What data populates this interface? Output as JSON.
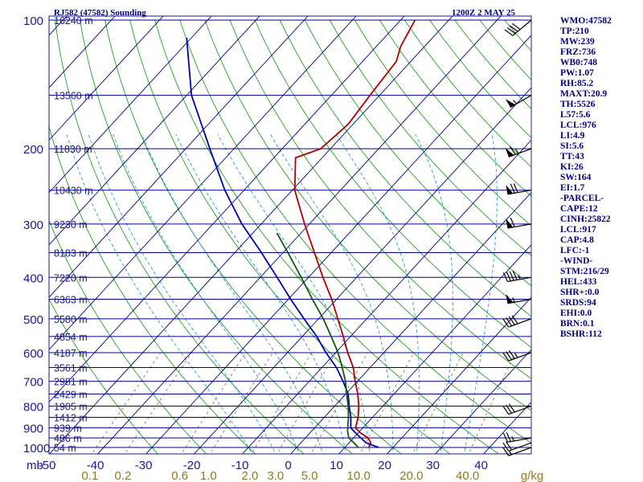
{
  "header": {
    "station": "RJ582 (47582) Sounding",
    "time": "1200Z  2 MAY 25"
  },
  "colors": {
    "isobar": "#00008b",
    "isotherm": "#00008b",
    "dry_adiabat": "#22a022",
    "moist_adiabat": "#229adc",
    "mixing_ratio": "#6b6b3c",
    "temperature": "#b00000",
    "dewpoint": "#0000b0",
    "parcel": "#105a10",
    "wind_barb": "#000000",
    "label_text": "#1a1a8c",
    "mixing_label_text": "#8f7a1e"
  },
  "indices": [
    "WMO:47582",
    "TP:210",
    "MW:239",
    "FRZ:736",
    "WB0:748",
    "PW:1.07",
    "RH:85.2",
    "MAXT:20.9",
    "TH:5526",
    "L57:5.6",
    "LCL:976",
    "LI:4.9",
    "SI:5.6",
    "TT:43",
    "KI:26",
    "SW:164",
    "EI:1.7",
    "-PARCEL-",
    "CAPE:12",
    "CINH:25822",
    "LCL:917",
    "CAP:4.8",
    "LFC:-1",
    "-WIND-",
    "STM:216/29",
    "HEL:433",
    "SHR+:0.0",
    "SRDS:94",
    "EHI:0.0",
    "BRN:0.1",
    "BSHR:112"
  ],
  "chart_data": {
    "type": "skew-t log-p",
    "y_axis": {
      "title": "mb",
      "scale": "log",
      "range": [
        1050,
        100
      ]
    },
    "pressure_labels": [
      "100",
      "200",
      "300",
      "400",
      "500",
      "600",
      "700",
      "800",
      "900",
      "1000"
    ],
    "pressure_values": [
      100,
      200,
      300,
      400,
      500,
      600,
      700,
      800,
      900,
      1000
    ],
    "height_labels": [
      {
        "p": 100,
        "text": "16240 m"
      },
      {
        "p": 150,
        "text": "13560 m"
      },
      {
        "p": 200,
        "text": "11830 m"
      },
      {
        "p": 250,
        "text": "10430 m"
      },
      {
        "p": 300,
        "text": "9230 m"
      },
      {
        "p": 350,
        "text": "8183 m"
      },
      {
        "p": 400,
        "text": "7220 m"
      },
      {
        "p": 450,
        "text": "6363 m"
      },
      {
        "p": 500,
        "text": "5580 m"
      },
      {
        "p": 550,
        "text": "4854 m"
      },
      {
        "p": 600,
        "text": "4187 m"
      },
      {
        "p": 650,
        "text": "3561 m"
      },
      {
        "p": 700,
        "text": "2981 m"
      },
      {
        "p": 750,
        "text": "2429 m"
      },
      {
        "p": 800,
        "text": "1905 m"
      },
      {
        "p": 850,
        "text": "1412 m"
      },
      {
        "p": 900,
        "text": "939 m"
      },
      {
        "p": 950,
        "text": "486 m"
      },
      {
        "p": 1000,
        "text": "54 m"
      }
    ],
    "temperature_axis": {
      "labels": [
        "-50",
        "-40",
        "-30",
        "-20",
        "-10",
        "0",
        "10",
        "20",
        "30",
        "40"
      ],
      "values": [
        -50,
        -40,
        -30,
        -20,
        -10,
        0,
        10,
        20,
        30,
        40
      ],
      "isotherm_range": [
        -130,
        50
      ]
    },
    "mixing_ratio_axis": {
      "unit": "g/kg",
      "labels": [
        "0.1",
        "0.2",
        "0.6",
        "1.0",
        "2.0",
        "3.0",
        "5.0",
        "10.0",
        "20.0",
        "40.0"
      ],
      "values": [
        0.1,
        0.2,
        0.6,
        1.0,
        2.0,
        3.0,
        5.0,
        10.0,
        20.0,
        40.0
      ]
    },
    "dry_adiabats_theta_c": [
      -30,
      -20,
      -10,
      0,
      10,
      20,
      30,
      40,
      50,
      60,
      70,
      80,
      90,
      100,
      110,
      120,
      130,
      140,
      150,
      160,
      170,
      180
    ],
    "moist_adiabats_c": [
      -10,
      -5,
      0,
      5,
      10,
      15,
      20,
      25,
      30,
      35
    ],
    "series": [
      {
        "name": "temperature",
        "points": [
          {
            "p": 1000,
            "t": 15.0
          },
          {
            "p": 975,
            "t": 14.5
          },
          {
            "p": 950,
            "t": 13.0
          },
          {
            "p": 925,
            "t": 10.5
          },
          {
            "p": 900,
            "t": 8.5
          },
          {
            "p": 850,
            "t": 7.0
          },
          {
            "p": 800,
            "t": 5.0
          },
          {
            "p": 750,
            "t": 2.5
          },
          {
            "p": 700,
            "t": -0.5
          },
          {
            "p": 650,
            "t": -3.5
          },
          {
            "p": 600,
            "t": -7.5
          },
          {
            "p": 550,
            "t": -11.5
          },
          {
            "p": 500,
            "t": -16.0
          },
          {
            "p": 450,
            "t": -21.0
          },
          {
            "p": 400,
            "t": -27.0
          },
          {
            "p": 350,
            "t": -33.5
          },
          {
            "p": 300,
            "t": -41.0
          },
          {
            "p": 250,
            "t": -49.5
          },
          {
            "p": 210,
            "t": -55.5
          },
          {
            "p": 200,
            "t": -52.0
          },
          {
            "p": 175,
            "t": -51.0
          },
          {
            "p": 150,
            "t": -52.0
          },
          {
            "p": 125,
            "t": -53.0
          },
          {
            "p": 115,
            "t": -55.0
          },
          {
            "p": 100,
            "t": -57.0
          }
        ]
      },
      {
        "name": "dewpoint",
        "points": [
          {
            "p": 1000,
            "t": 17.0
          },
          {
            "p": 975,
            "t": 13.5
          },
          {
            "p": 950,
            "t": 11.5
          },
          {
            "p": 925,
            "t": 9.5
          },
          {
            "p": 900,
            "t": 7.5
          },
          {
            "p": 850,
            "t": 5.5
          },
          {
            "p": 800,
            "t": 3.0
          },
          {
            "p": 750,
            "t": 0.5
          },
          {
            "p": 700,
            "t": -3.0
          },
          {
            "p": 650,
            "t": -7.0
          },
          {
            "p": 600,
            "t": -12.0
          },
          {
            "p": 550,
            "t": -17.0
          },
          {
            "p": 500,
            "t": -23.0
          },
          {
            "p": 450,
            "t": -29.5
          },
          {
            "p": 400,
            "t": -36.5
          },
          {
            "p": 350,
            "t": -44.5
          },
          {
            "p": 300,
            "t": -54.0
          },
          {
            "p": 250,
            "t": -64.0
          },
          {
            "p": 200,
            "t": -75.0
          },
          {
            "p": 150,
            "t": -89.0
          },
          {
            "p": 110,
            "t": -101.0
          }
        ]
      },
      {
        "name": "parcel",
        "points": [
          {
            "p": 1000,
            "t": 12.8
          },
          {
            "p": 975,
            "t": 11.0
          },
          {
            "p": 950,
            "t": 9.0
          },
          {
            "p": 917,
            "t": 7.5
          },
          {
            "p": 850,
            "t": 5.0
          },
          {
            "p": 800,
            "t": 2.8
          },
          {
            "p": 750,
            "t": 0.2
          },
          {
            "p": 700,
            "t": -2.5
          },
          {
            "p": 650,
            "t": -5.8
          },
          {
            "p": 600,
            "t": -9.5
          },
          {
            "p": 550,
            "t": -14.0
          },
          {
            "p": 500,
            "t": -19.0
          },
          {
            "p": 450,
            "t": -25.0
          },
          {
            "p": 400,
            "t": -31.5
          },
          {
            "p": 350,
            "t": -39.0
          },
          {
            "p": 315,
            "t": -45.0
          }
        ]
      }
    ],
    "wind_barbs": [
      {
        "p": 1000,
        "dir": 250,
        "spd": 15
      },
      {
        "p": 975,
        "dir": 250,
        "spd": 20
      },
      {
        "p": 950,
        "dir": 260,
        "spd": 25
      },
      {
        "p": 800,
        "dir": 250,
        "spd": 30
      },
      {
        "p": 600,
        "dir": 250,
        "spd": 35
      },
      {
        "p": 500,
        "dir": 250,
        "spd": 40
      },
      {
        "p": 450,
        "dir": 260,
        "spd": 55
      },
      {
        "p": 400,
        "dir": 260,
        "spd": 45
      },
      {
        "p": 300,
        "dir": 260,
        "spd": 60
      },
      {
        "p": 250,
        "dir": 260,
        "spd": 70
      },
      {
        "p": 200,
        "dir": 250,
        "spd": 65
      },
      {
        "p": 150,
        "dir": 240,
        "spd": 55
      },
      {
        "p": 100,
        "dir": 230,
        "spd": 40
      }
    ]
  }
}
